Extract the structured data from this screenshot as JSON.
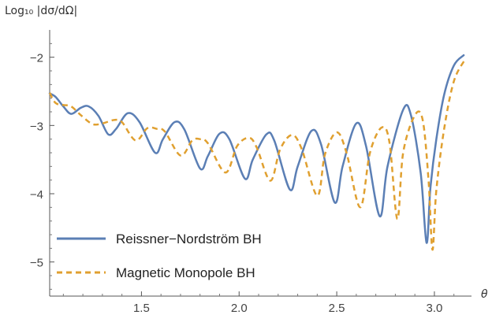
{
  "chart_data": {
    "type": "line",
    "title": "",
    "xlabel": "θ",
    "ylabel": "Log₁₀ |dσ/dΩ|",
    "xlim": [
      1.03,
      3.19
    ],
    "ylim": [
      -5.5,
      -1.6
    ],
    "x_ticks": [
      1.5,
      2.0,
      2.5,
      3.0
    ],
    "x_tick_labels": [
      "1.5",
      "2.0",
      "2.5",
      "3.0"
    ],
    "y_ticks": [
      -2,
      -3,
      -4,
      -5
    ],
    "y_tick_labels": [
      "−2",
      "−3",
      "−4",
      "−5"
    ],
    "grid": false,
    "legend_position": "bottom-left",
    "series": [
      {
        "name": "Reissner−Nordström BH",
        "color": "#5b7fb5",
        "style": "solid",
        "points": [
          [
            1.03,
            -2.53
          ],
          [
            1.06,
            -2.58
          ],
          [
            1.1,
            -2.72
          ],
          [
            1.14,
            -2.83
          ],
          [
            1.19,
            -2.74
          ],
          [
            1.23,
            -2.72
          ],
          [
            1.28,
            -2.86
          ],
          [
            1.33,
            -3.13
          ],
          [
            1.37,
            -3.05
          ],
          [
            1.43,
            -2.82
          ],
          [
            1.49,
            -2.95
          ],
          [
            1.57,
            -3.4
          ],
          [
            1.61,
            -3.2
          ],
          [
            1.67,
            -2.95
          ],
          [
            1.72,
            -3.06
          ],
          [
            1.8,
            -3.63
          ],
          [
            1.84,
            -3.45
          ],
          [
            1.9,
            -3.12
          ],
          [
            1.95,
            -3.2
          ],
          [
            2.03,
            -3.78
          ],
          [
            2.07,
            -3.5
          ],
          [
            2.14,
            -3.13
          ],
          [
            2.18,
            -3.22
          ],
          [
            2.26,
            -3.94
          ],
          [
            2.3,
            -3.6
          ],
          [
            2.37,
            -3.08
          ],
          [
            2.42,
            -3.28
          ],
          [
            2.49,
            -4.13
          ],
          [
            2.53,
            -3.6
          ],
          [
            2.6,
            -2.97
          ],
          [
            2.65,
            -3.3
          ],
          [
            2.72,
            -4.33
          ],
          [
            2.76,
            -3.6
          ],
          [
            2.84,
            -2.77
          ],
          [
            2.88,
            -2.85
          ],
          [
            2.93,
            -3.7
          ],
          [
            2.96,
            -4.72
          ],
          [
            2.98,
            -3.9
          ],
          [
            3.01,
            -3.2
          ],
          [
            3.05,
            -2.55
          ],
          [
            3.1,
            -2.12
          ],
          [
            3.15,
            -1.97
          ]
        ]
      },
      {
        "name": "Magnetic Monopole BH",
        "color": "#e0a030",
        "style": "dashed",
        "points": [
          [
            1.03,
            -2.52
          ],
          [
            1.06,
            -2.67
          ],
          [
            1.1,
            -2.7
          ],
          [
            1.14,
            -2.72
          ],
          [
            1.19,
            -2.85
          ],
          [
            1.25,
            -2.98
          ],
          [
            1.3,
            -2.97
          ],
          [
            1.36,
            -2.92
          ],
          [
            1.4,
            -2.95
          ],
          [
            1.47,
            -3.22
          ],
          [
            1.53,
            -3.04
          ],
          [
            1.58,
            -3.05
          ],
          [
            1.62,
            -3.09
          ],
          [
            1.7,
            -3.44
          ],
          [
            1.76,
            -3.22
          ],
          [
            1.8,
            -3.2
          ],
          [
            1.84,
            -3.26
          ],
          [
            1.93,
            -3.69
          ],
          [
            1.99,
            -3.3
          ],
          [
            2.05,
            -3.18
          ],
          [
            2.09,
            -3.32
          ],
          [
            2.16,
            -3.81
          ],
          [
            2.21,
            -3.35
          ],
          [
            2.27,
            -3.14
          ],
          [
            2.32,
            -3.34
          ],
          [
            2.4,
            -4.03
          ],
          [
            2.44,
            -3.42
          ],
          [
            2.5,
            -3.1
          ],
          [
            2.55,
            -3.4
          ],
          [
            2.62,
            -4.2
          ],
          [
            2.67,
            -3.4
          ],
          [
            2.73,
            -3.03
          ],
          [
            2.77,
            -3.25
          ],
          [
            2.81,
            -4.37
          ],
          [
            2.84,
            -3.4
          ],
          [
            2.9,
            -2.85
          ],
          [
            2.94,
            -2.92
          ],
          [
            2.97,
            -3.8
          ],
          [
            2.99,
            -4.82
          ],
          [
            3.01,
            -3.95
          ],
          [
            3.05,
            -3.05
          ],
          [
            3.1,
            -2.35
          ],
          [
            3.16,
            -2.02
          ]
        ]
      }
    ]
  }
}
